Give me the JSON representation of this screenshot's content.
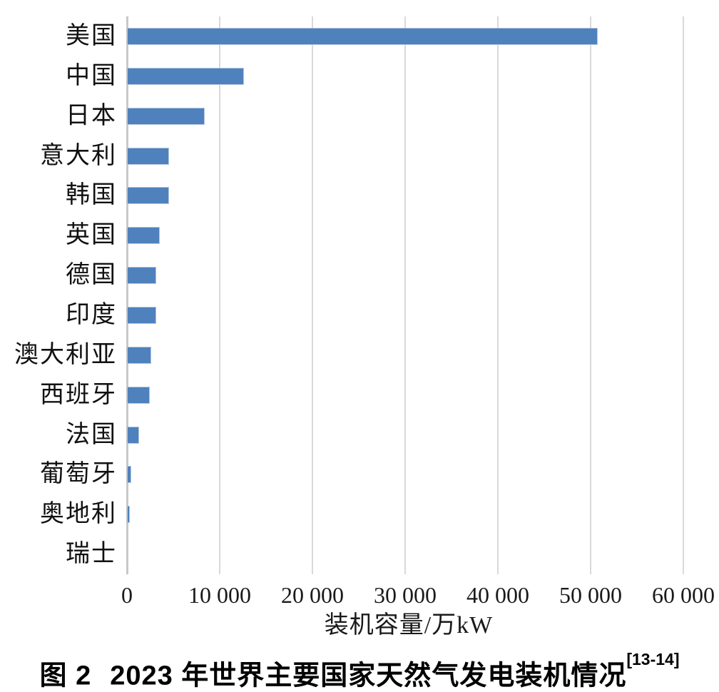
{
  "chart_data": {
    "type": "bar",
    "orientation": "horizontal",
    "title": "",
    "categories": [
      "美国",
      "中国",
      "日本",
      "意大利",
      "韩国",
      "英国",
      "德国",
      "印度",
      "澳大利亚",
      "西班牙",
      "法国",
      "葡萄牙",
      "奥地利",
      "瑞士"
    ],
    "values": [
      50800,
      12600,
      8360,
      4560,
      4510,
      3550,
      3180,
      3130,
      2600,
      2460,
      1300,
      430,
      300,
      0
    ],
    "xlabel": "装机容量/万kW",
    "ylabel": "",
    "xlim": [
      0,
      62000
    ],
    "xticks": [
      0,
      10000,
      20000,
      30000,
      40000,
      50000,
      60000
    ],
    "xtick_labels": [
      "0",
      "10 000",
      "20 000",
      "30 000",
      "40 000",
      "50 000",
      "60 000"
    ],
    "grid": "vertical-only",
    "legend": "none",
    "bar_color": "#4f81bd",
    "bar_border_color": "#b3c6e0",
    "gridline_color": "#d9d9d9",
    "unit": "万kW"
  },
  "caption": {
    "figure_label": "图 2",
    "text": "2023 年世界主要国家天然气发电装机情况",
    "reference": "[13-14]"
  }
}
